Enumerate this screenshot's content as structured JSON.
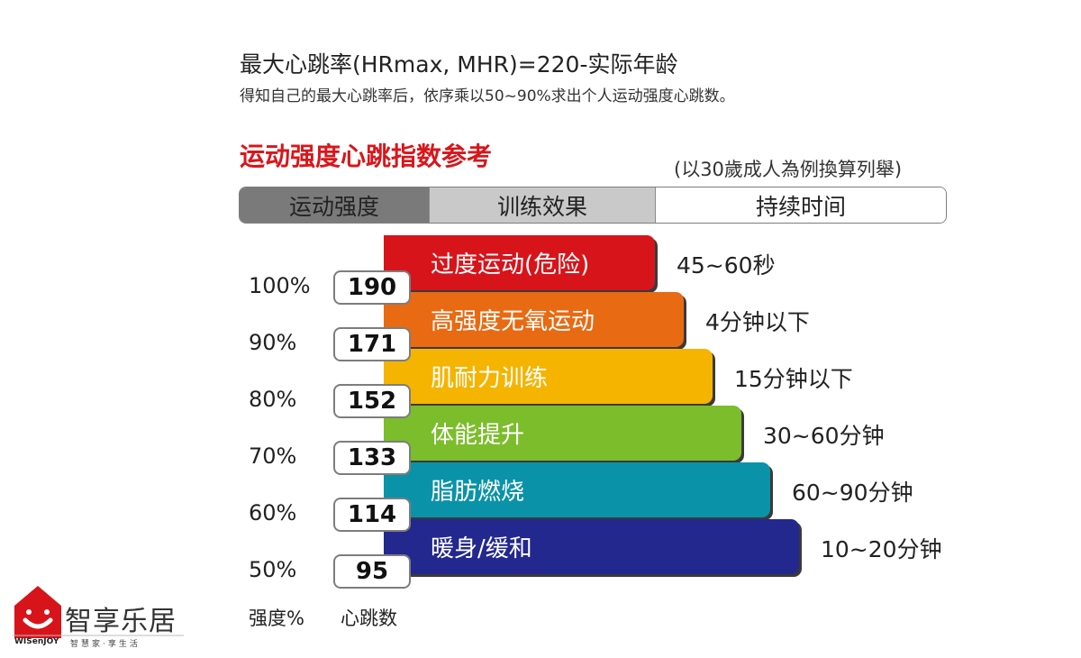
{
  "formula": "最大心跳率(HRmax, MHR)=220-实际年龄",
  "subtitle": "得知自己的最大心跳率后，依序乘以50~90%求出个人运动强度心跳数。",
  "chart_title": "运动强度心跳指数参考",
  "note": "(以30歲成人為例換算列舉)",
  "header": [
    "运动强度",
    "训练效果",
    "持续时间"
  ],
  "axis_labels": {
    "intensity": "强度%",
    "heart_rate": "心跳数"
  },
  "logo": {
    "name": "智享乐居",
    "en": "WISenJOY",
    "slogan": "智慧家·享生活"
  },
  "chart_data": {
    "type": "table",
    "title": "运动强度心跳指数参考",
    "columns": [
      "运动强度",
      "训练效果",
      "持续时间"
    ],
    "intensity_percent": [
      "100%",
      "90%",
      "80%",
      "70%",
      "60%",
      "50%"
    ],
    "heart_rate": [
      190,
      171,
      152,
      133,
      114,
      95
    ],
    "zones": [
      {
        "label": "过度运动(危险)",
        "duration": "45~60秒",
        "range_pct": [
          90,
          100
        ],
        "color": "#d8141b"
      },
      {
        "label": "高强度无氧运动",
        "duration": "4分钟以下",
        "range_pct": [
          80,
          90
        ],
        "color": "#e86a12"
      },
      {
        "label": "肌耐力训练",
        "duration": "15分钟以下",
        "range_pct": [
          70,
          80
        ],
        "color": "#f5b400"
      },
      {
        "label": "体能提升",
        "duration": "30~60分钟",
        "range_pct": [
          60,
          70
        ],
        "color": "#7cbd2c"
      },
      {
        "label": "脂肪燃烧",
        "duration": "60~90分钟",
        "range_pct": [
          50,
          60
        ],
        "color": "#0a93a8"
      },
      {
        "label": "暖身/缓和",
        "duration": "10~20分钟",
        "range_pct": [
          40,
          50
        ],
        "color": "#23288e"
      }
    ]
  }
}
